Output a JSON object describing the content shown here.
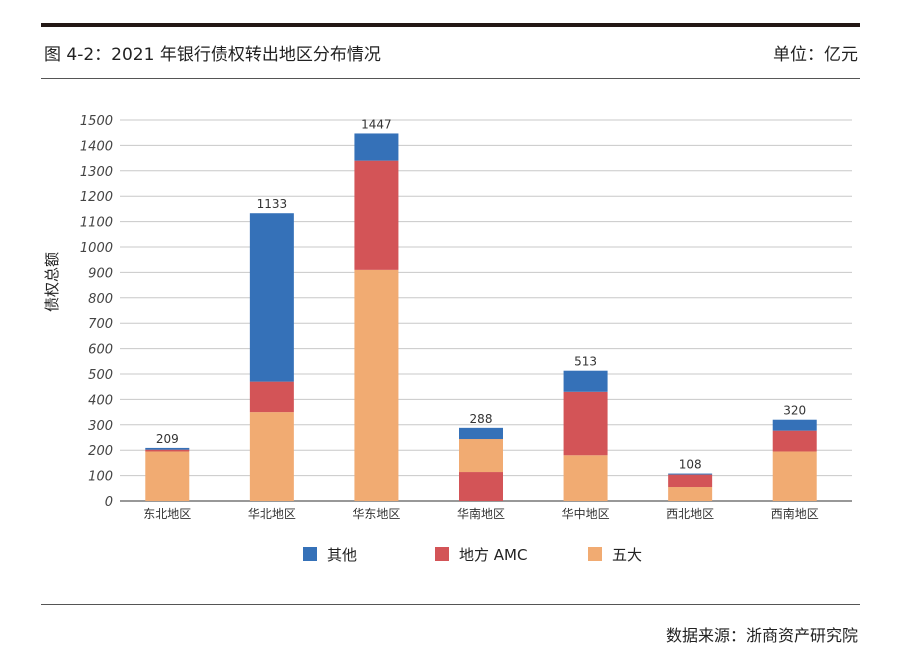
{
  "header": {
    "title": "图 4-2：2021 年银行债权转出地区分布情况",
    "unit": "单位：亿元"
  },
  "footer": {
    "source": "数据来源：浙商资产研究院"
  },
  "chart_data": {
    "type": "bar",
    "stacked": true,
    "title": "",
    "xlabel": "",
    "ylabel": "债权总额",
    "ylim": [
      0,
      1500
    ],
    "yticks": [
      0,
      100,
      200,
      300,
      400,
      500,
      600,
      700,
      800,
      900,
      1000,
      1100,
      1200,
      1300,
      1400,
      1500
    ],
    "grid": true,
    "legend_position": "bottom",
    "categories": [
      "东北地区",
      "华北地区",
      "华东地区",
      "华南地区",
      "华中地区",
      "西北地区",
      "西南地区"
    ],
    "totals": [
      209,
      1133,
      1447,
      288,
      513,
      108,
      320
    ],
    "series": [
      {
        "name": "其他",
        "color": "#3571b8",
        "values": [
          7,
          663,
          107,
          44,
          83,
          4,
          43
        ]
      },
      {
        "name": "地方 AMC",
        "color": "#d35457",
        "values": [
          7,
          120,
          430,
          114,
          250,
          49,
          82
        ]
      },
      {
        "name": "五大",
        "color": "#f1ab72",
        "values": [
          195,
          350,
          910,
          130,
          180,
          55,
          195
        ]
      }
    ],
    "stack_order_bottom_to_top": [
      [
        "五大",
        "地方 AMC",
        "其他"
      ],
      [
        "五大",
        "地方 AMC",
        "其他"
      ],
      [
        "五大",
        "地方 AMC",
        "其他"
      ],
      [
        "地方 AMC",
        "五大",
        "其他"
      ],
      [
        "五大",
        "地方 AMC",
        "其他"
      ],
      [
        "五大",
        "地方 AMC",
        "其他"
      ],
      [
        "五大",
        "地方 AMC",
        "其他"
      ]
    ]
  }
}
